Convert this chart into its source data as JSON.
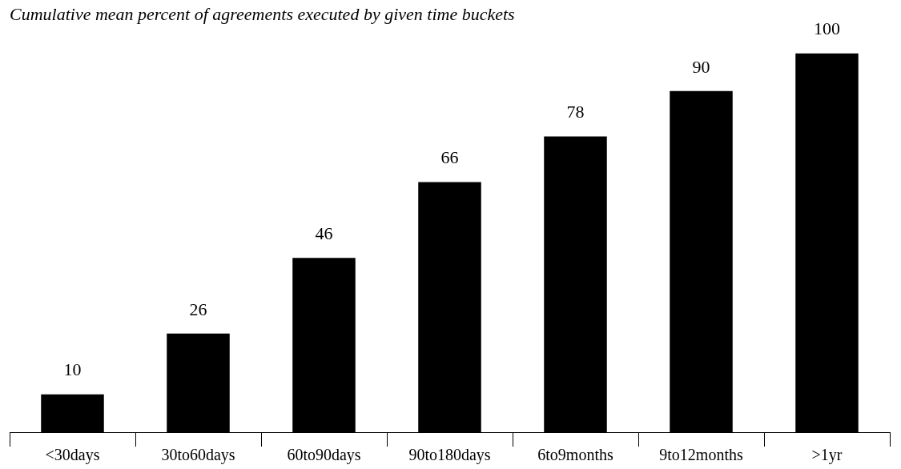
{
  "chart_data": {
    "type": "bar",
    "title": "Cumulative mean percent of agreements executed by given time buckets",
    "categories": [
      "<30days",
      "30to60days",
      "60to90days",
      "90to180days",
      "6to9months",
      "9to12months",
      ">1yr"
    ],
    "values": [
      10,
      26,
      46,
      66,
      78,
      90,
      100
    ],
    "color": "#000000",
    "data_labels": true,
    "legend": false
  }
}
